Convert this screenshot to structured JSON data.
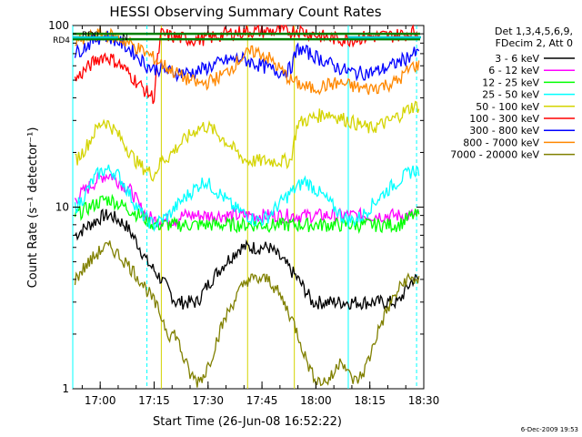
{
  "chart_data": {
    "type": "line",
    "title": "HESSI Observing Summary Count Rates",
    "xlabel": "Start Time (26-Jun-08 16:52:22)",
    "ylabel": "Count Rate (s⁻¹ detector⁻¹)",
    "y_scale": "log",
    "ylim": [
      1,
      100
    ],
    "xlim": [
      "16:52:22",
      "18:30:00"
    ],
    "x_ticks": [
      "17:00",
      "17:15",
      "17:30",
      "17:45",
      "18:00",
      "18:15",
      "18:30"
    ],
    "y_ticks": [
      "1",
      "10",
      "100"
    ],
    "legend_title": [
      "Det 1,3,4,5,6,9,",
      "FDecim 2, Att 0"
    ],
    "legend_position": "right",
    "x": [
      "16:53",
      "16:55",
      "16:57",
      "16:59",
      "17:01",
      "17:03",
      "17:05",
      "17:07",
      "17:09",
      "17:11",
      "17:13",
      "17:15",
      "17:17",
      "17:19",
      "17:21",
      "17:23",
      "17:25",
      "17:27",
      "17:29",
      "17:31",
      "17:33",
      "17:35",
      "17:37",
      "17:39",
      "17:41",
      "17:43",
      "17:45",
      "17:47",
      "17:49",
      "17:51",
      "17:53",
      "17:55",
      "17:57",
      "17:59",
      "18:01",
      "18:03",
      "18:05",
      "18:07",
      "18:09",
      "18:11",
      "18:13",
      "18:15",
      "18:17",
      "18:19",
      "18:21",
      "18:23",
      "18:25",
      "18:27"
    ],
    "series": [
      {
        "name": "3 - 6 keV",
        "color": "#000000",
        "values": [
          7,
          7.5,
          8,
          8.5,
          9,
          9,
          8.5,
          8,
          7,
          6,
          5,
          4.5,
          4,
          3.5,
          3,
          3,
          3,
          3,
          3.5,
          4,
          4.5,
          5,
          5.5,
          6,
          6,
          6,
          6,
          6,
          5.5,
          5,
          4.5,
          4,
          3.5,
          3,
          3,
          3,
          3,
          3,
          3,
          3,
          3,
          3,
          3,
          3,
          3,
          3,
          3.5,
          4
        ]
      },
      {
        "name": "6 - 12 keV",
        "color": "#ff00ff",
        "values": [
          11,
          12,
          13,
          14,
          15,
          15,
          14,
          13,
          12,
          10,
          9,
          8.5,
          8.5,
          8.5,
          8.5,
          9,
          9,
          9,
          9,
          9,
          9,
          9,
          9,
          9,
          9,
          9,
          9,
          9,
          9,
          9,
          9,
          9,
          9,
          9,
          9,
          9,
          9,
          9,
          9,
          9,
          9,
          9,
          9,
          9,
          9,
          9,
          9,
          9
        ]
      },
      {
        "name": "12 - 25 keV",
        "color": "#00ff00",
        "values": [
          9,
          9.5,
          10,
          10.5,
          11,
          11,
          10.5,
          10,
          9.5,
          9,
          8.5,
          8,
          8,
          8,
          8,
          8,
          8,
          8,
          8,
          8,
          8,
          8,
          8,
          8,
          8,
          8,
          8,
          8,
          8,
          8,
          8,
          8,
          8,
          8,
          8,
          8,
          8,
          8,
          8,
          8,
          8,
          8,
          8,
          8,
          8,
          8,
          8.5,
          9
        ]
      },
      {
        "name": "25 - 50 keV",
        "color": "#00ffff",
        "values": [
          10,
          11,
          13,
          15,
          16,
          16,
          15,
          13,
          11,
          9.5,
          8.5,
          8,
          8.5,
          9,
          10,
          11,
          12,
          13,
          14,
          13,
          12,
          11,
          10,
          9.5,
          9,
          8.5,
          8.5,
          9,
          10,
          11,
          12,
          13,
          14,
          13,
          12,
          11,
          10,
          9,
          8.5,
          8.5,
          9,
          10,
          11,
          12,
          13,
          14,
          15,
          16
        ]
      },
      {
        "name": "50 - 100 keV",
        "color": "#d4d400",
        "values": [
          18,
          20,
          23,
          27,
          30,
          28,
          25,
          22,
          19,
          17,
          16,
          15,
          18,
          19,
          21,
          23,
          25,
          27,
          28,
          27,
          25,
          23,
          21,
          19,
          18,
          18,
          18,
          18,
          18,
          18,
          18,
          29,
          30,
          31,
          32,
          33,
          32,
          31,
          30,
          29,
          28,
          27,
          28,
          29,
          30,
          32,
          34,
          36
        ]
      },
      {
        "name": "100 - 300 keV",
        "color": "#ff0000",
        "values": [
          50,
          55,
          60,
          65,
          68,
          66,
          62,
          57,
          52,
          47,
          43,
          40,
          90,
          88,
          86,
          85,
          84,
          84,
          85,
          86,
          88,
          90,
          91,
          92,
          93,
          93,
          93,
          93,
          93,
          93,
          93,
          95,
          92,
          90,
          88,
          86,
          85,
          84,
          84,
          85,
          86,
          87,
          87,
          88,
          88,
          89,
          90,
          92
        ]
      },
      {
        "name": "300 - 800 keV",
        "color": "#0000ff",
        "values": [
          70,
          75,
          80,
          85,
          88,
          86,
          82,
          77,
          72,
          66,
          60,
          58,
          58,
          56,
          55,
          55,
          55,
          56,
          58,
          60,
          62,
          64,
          65,
          66,
          64,
          62,
          60,
          58,
          56,
          56,
          58,
          75,
          72,
          69,
          66,
          63,
          60,
          58,
          56,
          55,
          55,
          55,
          56,
          58,
          60,
          63,
          66,
          70
        ]
      },
      {
        "name": "800 - 7000 keV",
        "color": "#ff8800",
        "values": [
          80,
          83,
          86,
          89,
          90,
          88,
          85,
          82,
          78,
          74,
          70,
          66,
          62,
          58,
          55,
          52,
          50,
          48,
          48,
          50,
          52,
          55,
          60,
          66,
          70,
          72,
          70,
          66,
          60,
          55,
          50,
          48,
          46,
          45,
          46,
          47,
          48,
          48,
          47,
          46,
          45,
          45,
          46,
          47,
          48,
          50,
          55,
          60
        ]
      },
      {
        "name": "7000 - 20000 keV",
        "color": "#808000",
        "values": [
          4,
          4.5,
          5,
          5.5,
          6,
          6,
          5.5,
          5,
          4.5,
          4,
          3.5,
          3,
          2.5,
          2,
          2,
          1.5,
          1.2,
          1.1,
          1.2,
          1.5,
          2,
          2.5,
          3,
          3.5,
          4,
          4,
          4,
          4,
          3.5,
          3,
          2.5,
          2,
          1.5,
          1.2,
          1.1,
          1.1,
          1.2,
          1.5,
          1.2,
          1.1,
          1.2,
          1.5,
          2,
          2.5,
          3,
          3.5,
          4,
          4
        ]
      }
    ],
    "annotations": [
      {
        "label": "RD4",
        "color": "#008000",
        "value": 84
      },
      {
        "label": "RD0",
        "color": "#008000",
        "value": 90
      },
      {
        "label": "N",
        "color": "#00cccc"
      }
    ],
    "vertical_markers": [
      {
        "time": "16:52:22",
        "style": "solid",
        "color": "#00ffff"
      },
      {
        "time": "17:13",
        "style": "dashed",
        "color": "#00ffff"
      },
      {
        "time": "17:17",
        "style": "solid",
        "color": "#d4d400"
      },
      {
        "time": "17:41",
        "style": "solid",
        "color": "#d4d400"
      },
      {
        "time": "17:54",
        "style": "solid",
        "color": "#d4d400"
      },
      {
        "time": "18:09",
        "style": "solid",
        "color": "#00ffff"
      },
      {
        "time": "18:28",
        "style": "dashed",
        "color": "#00ffff"
      }
    ],
    "timestamp": "6-Dec-2009 19:53"
  }
}
